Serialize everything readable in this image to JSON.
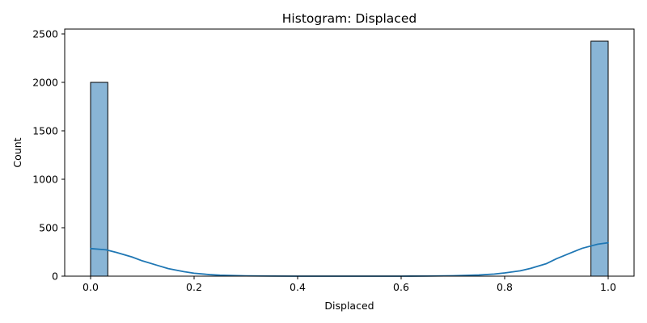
{
  "chart_data": {
    "type": "bar",
    "title": "Histogram: Displaced",
    "xlabel": "Displaced",
    "ylabel": "Count",
    "xlim": [
      -0.05,
      1.05
    ],
    "ylim": [
      0,
      2550
    ],
    "xticks": [
      0.0,
      0.2,
      0.4,
      0.6,
      0.8,
      1.0
    ],
    "xtick_labels": [
      "0.0",
      "0.2",
      "0.4",
      "0.6",
      "0.8",
      "1.0"
    ],
    "yticks": [
      0,
      500,
      1000,
      1500,
      2000,
      2500
    ],
    "ytick_labels": [
      "0",
      "500",
      "1000",
      "1500",
      "2000",
      "2500"
    ],
    "grid": false,
    "bins": 30,
    "bin_width": 0.0333,
    "bars": [
      {
        "x0": 0.0,
        "x1": 0.0333,
        "value": 2000
      },
      {
        "x0": 0.9667,
        "x1": 1.0,
        "value": 2425
      }
    ],
    "kde": {
      "name": "KDE",
      "x": [
        0.0,
        0.03,
        0.05,
        0.08,
        0.1,
        0.13,
        0.15,
        0.18,
        0.2,
        0.23,
        0.25,
        0.3,
        0.35,
        0.4,
        0.45,
        0.5,
        0.55,
        0.6,
        0.65,
        0.7,
        0.75,
        0.78,
        0.8,
        0.83,
        0.85,
        0.88,
        0.9,
        0.93,
        0.95,
        0.98,
        1.0
      ],
      "y": [
        285,
        272,
        245,
        198,
        158,
        110,
        78,
        47,
        30,
        16,
        10,
        3,
        1,
        0,
        0,
        0,
        0,
        0,
        1,
        4,
        12,
        22,
        33,
        55,
        80,
        128,
        180,
        245,
        288,
        330,
        345
      ]
    },
    "colors": {
      "bar_fill": "#89b5d6",
      "bar_edge": "#000000",
      "kde_line": "#1f77b4"
    }
  }
}
